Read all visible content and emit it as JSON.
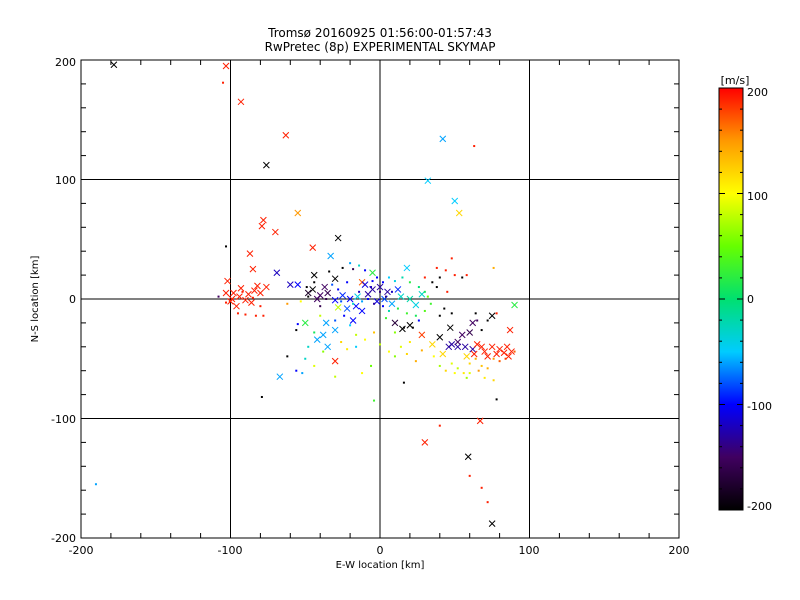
{
  "chart_data": {
    "type": "scatter",
    "title": "Tromsø 20160925 01:56:00-01:57:43",
    "subtitle": "RwPretec (8p) EXPERIMENTAL SKYMAP",
    "xlabel": "E-W location [km]",
    "ylabel": "N-S location [km]",
    "xlim": [
      -200,
      200
    ],
    "ylim": [
      -200,
      200
    ],
    "x_ticks": [
      "-200",
      "-100",
      "0",
      "100",
      "200"
    ],
    "y_ticks": [
      "-200",
      "-100",
      "0",
      "100",
      "200"
    ],
    "grid": true,
    "colorbar": {
      "label": "[m/s]",
      "range": [
        -200,
        200
      ],
      "ticks": [
        "200",
        "100",
        "0",
        "-100",
        "-200"
      ],
      "colormap": [
        "#000000",
        "#400060",
        "#0000ff",
        "#00ccff",
        "#00e070",
        "#66ff00",
        "#ffff00",
        "#ff9900",
        "#ff0000"
      ]
    },
    "series": [
      {
        "marker": "x",
        "points": [
          [
            -178,
            196,
            -200
          ],
          [
            -103,
            195,
            190
          ],
          [
            -93,
            165,
            190
          ],
          [
            -63,
            137,
            190
          ],
          [
            -76,
            112,
            -200
          ],
          [
            42,
            134,
            -60
          ],
          [
            32,
            99,
            -50
          ],
          [
            50,
            82,
            -50
          ],
          [
            53,
            72,
            120
          ],
          [
            -55,
            72,
            150
          ],
          [
            -78,
            66,
            190
          ],
          [
            -79,
            61,
            190
          ],
          [
            -87,
            38,
            190
          ],
          [
            -70,
            56,
            190
          ],
          [
            -28,
            51,
            -200
          ],
          [
            -45,
            43,
            190
          ],
          [
            -33,
            36,
            -60
          ],
          [
            -69,
            22,
            -120
          ],
          [
            -85,
            25,
            190
          ],
          [
            -102,
            15,
            190
          ],
          [
            -60,
            12,
            -120
          ],
          [
            -44,
            20,
            -200
          ],
          [
            -30,
            17,
            -200
          ],
          [
            -12,
            14,
            170
          ],
          [
            -5,
            22,
            20
          ],
          [
            18,
            26,
            -50
          ],
          [
            -98,
            5,
            190
          ],
          [
            -94,
            2,
            190
          ],
          [
            -90,
            -1,
            190
          ],
          [
            -96,
            -6,
            190
          ],
          [
            -100,
            -2,
            190
          ],
          [
            -88,
            4,
            190
          ],
          [
            -84,
            7,
            190
          ],
          [
            -80,
            5,
            190
          ],
          [
            -76,
            10,
            190
          ],
          [
            -103,
            5,
            190
          ],
          [
            -99,
            0,
            190
          ],
          [
            -93,
            9,
            190
          ],
          [
            -86,
            -3,
            190
          ],
          [
            -82,
            11,
            190
          ],
          [
            -45,
            8,
            -200
          ],
          [
            -48,
            5,
            -180
          ],
          [
            -40,
            3,
            -150
          ],
          [
            -37,
            10,
            -150
          ],
          [
            -42,
            0,
            -150
          ],
          [
            -35,
            5,
            -160
          ],
          [
            -30,
            -1,
            -100
          ],
          [
            -20,
            0,
            -100
          ],
          [
            -16,
            -6,
            -100
          ],
          [
            -22,
            -8,
            -80
          ],
          [
            -8,
            4,
            -130
          ],
          [
            -5,
            8,
            -130
          ],
          [
            0,
            10,
            -130
          ],
          [
            5,
            6,
            -130
          ],
          [
            -10,
            12,
            -110
          ],
          [
            -2,
            -2,
            -110
          ],
          [
            3,
            0,
            -80
          ],
          [
            8,
            -4,
            -60
          ],
          [
            14,
            2,
            -30
          ],
          [
            20,
            0,
            -20
          ],
          [
            24,
            -5,
            -40
          ],
          [
            28,
            4,
            -30
          ],
          [
            12,
            8,
            -90
          ],
          [
            -15,
            2,
            -40
          ],
          [
            -25,
            3,
            -90
          ],
          [
            -28,
            -7,
            80
          ],
          [
            -12,
            -10,
            -100
          ],
          [
            -18,
            -18,
            -100
          ],
          [
            -36,
            -20,
            -60
          ],
          [
            -38,
            -30,
            -60
          ],
          [
            -42,
            -34,
            -60
          ],
          [
            -35,
            -40,
            -60
          ],
          [
            -30,
            -26,
            -60
          ],
          [
            -55,
            12,
            -100
          ],
          [
            -50,
            -20,
            20
          ],
          [
            10,
            -20,
            -170
          ],
          [
            15,
            -25,
            -200
          ],
          [
            20,
            -22,
            -200
          ],
          [
            28,
            -30,
            180
          ],
          [
            35,
            -38,
            120
          ],
          [
            40,
            -32,
            -200
          ],
          [
            42,
            -46,
            120
          ],
          [
            47,
            -24,
            -200
          ],
          [
            52,
            -36,
            -150
          ],
          [
            55,
            -30,
            -150
          ],
          [
            60,
            -28,
            -160
          ],
          [
            46,
            -40,
            -130
          ],
          [
            48,
            -38,
            -130
          ],
          [
            52,
            -40,
            -130
          ],
          [
            57,
            -40,
            -130
          ],
          [
            62,
            -42,
            -130
          ],
          [
            65,
            -38,
            190
          ],
          [
            70,
            -44,
            190
          ],
          [
            75,
            -40,
            190
          ],
          [
            80,
            -42,
            190
          ],
          [
            83,
            -45,
            190
          ],
          [
            85,
            -40,
            190
          ],
          [
            88,
            -44,
            190
          ],
          [
            86,
            -48,
            190
          ],
          [
            78,
            -46,
            190
          ],
          [
            72,
            -48,
            190
          ],
          [
            68,
            -40,
            190
          ],
          [
            63,
            -46,
            190
          ],
          [
            58,
            -48,
            120
          ],
          [
            87,
            -26,
            190
          ],
          [
            75,
            -14,
            -200
          ],
          [
            62,
            -20,
            -150
          ],
          [
            90,
            -5,
            20
          ],
          [
            -30,
            -52,
            190
          ],
          [
            -67,
            -65,
            -60
          ],
          [
            30,
            -120,
            190
          ],
          [
            67,
            -102,
            190
          ],
          [
            59,
            -132,
            -200
          ],
          [
            75,
            -188,
            -200
          ]
        ]
      },
      {
        "marker": "dot",
        "points": [
          [
            -105,
            181,
            190
          ],
          [
            -103,
            44,
            -200
          ],
          [
            -108,
            2,
            -150
          ],
          [
            -103,
            -3,
            190
          ],
          [
            -95,
            -12,
            190
          ],
          [
            -90,
            -13,
            190
          ],
          [
            -83,
            -14,
            190
          ],
          [
            -78,
            -14,
            190
          ],
          [
            -80,
            -6,
            190
          ],
          [
            -85,
            1,
            190
          ],
          [
            -92,
            6,
            190
          ],
          [
            -79,
            -82,
            -200
          ],
          [
            -56,
            -26,
            -200
          ],
          [
            -55,
            -21,
            -100
          ],
          [
            -53,
            -2,
            100
          ],
          [
            -62,
            -4,
            150
          ],
          [
            -49,
            10,
            -200
          ],
          [
            -48,
            2,
            -200
          ],
          [
            -34,
            23,
            -200
          ],
          [
            -25,
            26,
            -200
          ],
          [
            -18,
            25,
            -160
          ],
          [
            -14,
            28,
            -30
          ],
          [
            -10,
            24,
            -100
          ],
          [
            -5,
            15,
            -100
          ],
          [
            -2,
            18,
            -100
          ],
          [
            2,
            14,
            -100
          ],
          [
            6,
            18,
            -50
          ],
          [
            10,
            15,
            -40
          ],
          [
            15,
            18,
            -20
          ],
          [
            20,
            14,
            20
          ],
          [
            26,
            10,
            0
          ],
          [
            30,
            6,
            10
          ],
          [
            32,
            2,
            50
          ],
          [
            -22,
            14,
            -100
          ],
          [
            -28,
            8,
            -100
          ],
          [
            -32,
            12,
            -80
          ],
          [
            -26,
            -2,
            -80
          ],
          [
            -18,
            -4,
            -30
          ],
          [
            -12,
            -2,
            -60
          ],
          [
            -8,
            0,
            -100
          ],
          [
            -4,
            -4,
            -130
          ],
          [
            2,
            -6,
            -100
          ],
          [
            6,
            -10,
            -20
          ],
          [
            12,
            -8,
            20
          ],
          [
            18,
            -12,
            30
          ],
          [
            24,
            -14,
            10
          ],
          [
            30,
            -10,
            40
          ],
          [
            34,
            -4,
            30
          ],
          [
            -40,
            -14,
            80
          ],
          [
            -44,
            -28,
            10
          ],
          [
            -48,
            -40,
            -30
          ],
          [
            -50,
            -50,
            -30
          ],
          [
            -52,
            -62,
            -60
          ],
          [
            -44,
            -56,
            90
          ],
          [
            -38,
            -44,
            60
          ],
          [
            -26,
            -36,
            120
          ],
          [
            -22,
            -42,
            110
          ],
          [
            -16,
            -30,
            80
          ],
          [
            -10,
            -34,
            100
          ],
          [
            -4,
            -28,
            130
          ],
          [
            0,
            -38,
            80
          ],
          [
            6,
            -44,
            100
          ],
          [
            10,
            -48,
            60
          ],
          [
            14,
            -40,
            90
          ],
          [
            18,
            -46,
            120
          ],
          [
            20,
            -36,
            110
          ],
          [
            24,
            -52,
            140
          ],
          [
            -6,
            -56,
            50
          ],
          [
            -12,
            -62,
            100
          ],
          [
            -30,
            -65,
            80
          ],
          [
            -4,
            -85,
            30
          ],
          [
            16,
            -70,
            -200
          ],
          [
            40,
            -106,
            190
          ],
          [
            28,
            -43,
            140
          ],
          [
            36,
            -48,
            100
          ],
          [
            40,
            -56,
            70
          ],
          [
            44,
            -60,
            120
          ],
          [
            48,
            -54,
            90
          ],
          [
            52,
            -58,
            80
          ],
          [
            56,
            -62,
            110
          ],
          [
            60,
            -54,
            120
          ],
          [
            64,
            -50,
            140
          ],
          [
            68,
            -56,
            130
          ],
          [
            72,
            -58,
            140
          ],
          [
            76,
            -50,
            150
          ],
          [
            80,
            -52,
            170
          ],
          [
            84,
            -50,
            180
          ],
          [
            90,
            -44,
            170
          ],
          [
            66,
            -60,
            150
          ],
          [
            60,
            -62,
            90
          ],
          [
            70,
            -66,
            110
          ],
          [
            76,
            -68,
            120
          ],
          [
            50,
            -62,
            100
          ],
          [
            58,
            -66,
            70
          ],
          [
            78,
            -84,
            -200
          ],
          [
            68,
            -26,
            -200
          ],
          [
            72,
            -18,
            -200
          ],
          [
            65,
            -18,
            -150
          ],
          [
            40,
            -14,
            -200
          ],
          [
            43,
            -8,
            -200
          ],
          [
            48,
            -12,
            -200
          ],
          [
            45,
            6,
            190
          ],
          [
            38,
            10,
            -200
          ],
          [
            30,
            18,
            190
          ],
          [
            38,
            26,
            190
          ],
          [
            44,
            24,
            190
          ],
          [
            50,
            20,
            190
          ],
          [
            55,
            18,
            -200
          ],
          [
            58,
            20,
            190
          ],
          [
            76,
            26,
            140
          ],
          [
            40,
            18,
            -200
          ],
          [
            35,
            14,
            -200
          ],
          [
            64,
            -12,
            -200
          ],
          [
            78,
            -12,
            190
          ],
          [
            48,
            34,
            190
          ],
          [
            63,
            128,
            190
          ],
          [
            60,
            -148,
            190
          ],
          [
            68,
            -158,
            190
          ],
          [
            72,
            -170,
            190
          ],
          [
            -190,
            -155,
            -60
          ],
          [
            -56,
            -60,
            -100
          ],
          [
            -62,
            -48,
            -200
          ],
          [
            -40,
            -6,
            -160
          ],
          [
            -36,
            0,
            -160
          ],
          [
            -44,
            14,
            -200
          ],
          [
            -20,
            30,
            -60
          ],
          [
            0,
            6,
            -140
          ],
          [
            4,
            2,
            -140
          ],
          [
            8,
            6,
            -120
          ],
          [
            -6,
            10,
            -120
          ],
          [
            -14,
            6,
            -120
          ],
          [
            -24,
            -14,
            -100
          ],
          [
            -30,
            -18,
            -80
          ],
          [
            -20,
            -22,
            -50
          ],
          [
            -16,
            -40,
            -50
          ],
          [
            4,
            -16,
            30
          ],
          [
            10,
            -28,
            60
          ],
          [
            16,
            -24,
            -200
          ],
          [
            22,
            -24,
            -200
          ],
          [
            26,
            -18,
            -100
          ]
        ]
      }
    ]
  }
}
